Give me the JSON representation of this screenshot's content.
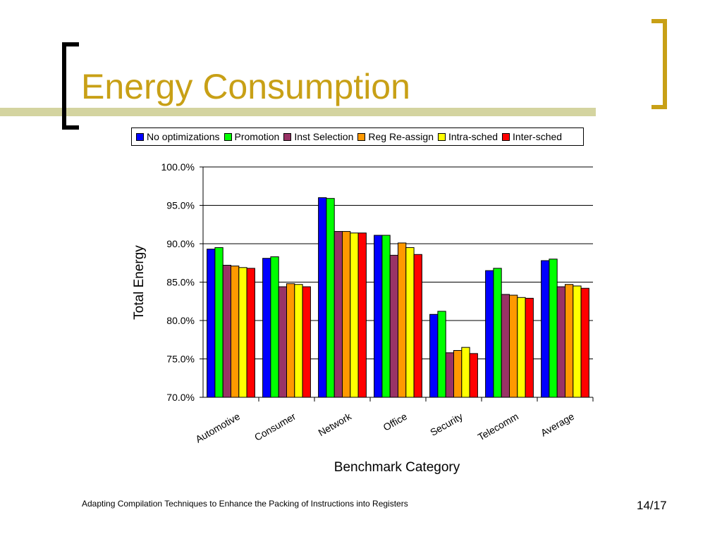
{
  "slide": {
    "title": "Energy Consumption",
    "footer": "Adapting Compilation Techniques to Enhance the Packing of Instructions into Registers",
    "page_number": "14/17",
    "colors": {
      "title": "#C8A016",
      "accent_line": "#D4D4A0",
      "left_bracket": "#000000",
      "right_bracket": "#C8A016"
    }
  },
  "chart_data": {
    "type": "bar",
    "categories": [
      "Automotive",
      "Consumer",
      "Network",
      "Office",
      "Security",
      "Telecomm",
      "Average"
    ],
    "series": [
      {
        "name": "No optimizations",
        "color": "#0000FF",
        "values": [
          89.3,
          88.1,
          96.0,
          91.1,
          80.8,
          86.5,
          87.8
        ]
      },
      {
        "name": "Promotion",
        "color": "#00FF00",
        "values": [
          89.5,
          88.3,
          95.9,
          91.1,
          81.2,
          86.8,
          88.0
        ]
      },
      {
        "name": "Inst Selection",
        "color": "#993366",
        "values": [
          87.2,
          84.4,
          91.6,
          88.5,
          75.8,
          83.4,
          84.4
        ]
      },
      {
        "name": "Reg Re-assign",
        "color": "#FF9900",
        "values": [
          87.1,
          84.8,
          91.6,
          90.1,
          76.1,
          83.3,
          84.7
        ]
      },
      {
        "name": "Intra-sched",
        "color": "#FFFF00",
        "values": [
          86.9,
          84.7,
          91.4,
          89.5,
          76.5,
          83.0,
          84.5
        ]
      },
      {
        "name": "Inter-sched",
        "color": "#FF0000",
        "values": [
          86.8,
          84.4,
          91.4,
          88.6,
          75.7,
          82.9,
          84.2
        ]
      }
    ],
    "title": "",
    "xlabel": "Benchmark Category",
    "ylabel": "Total Energy",
    "ylim": [
      70,
      100
    ],
    "yticks": [
      "70.0%",
      "75.0%",
      "80.0%",
      "85.0%",
      "90.0%",
      "95.0%",
      "100.0%"
    ],
    "grid": true,
    "legend_position": "top"
  }
}
